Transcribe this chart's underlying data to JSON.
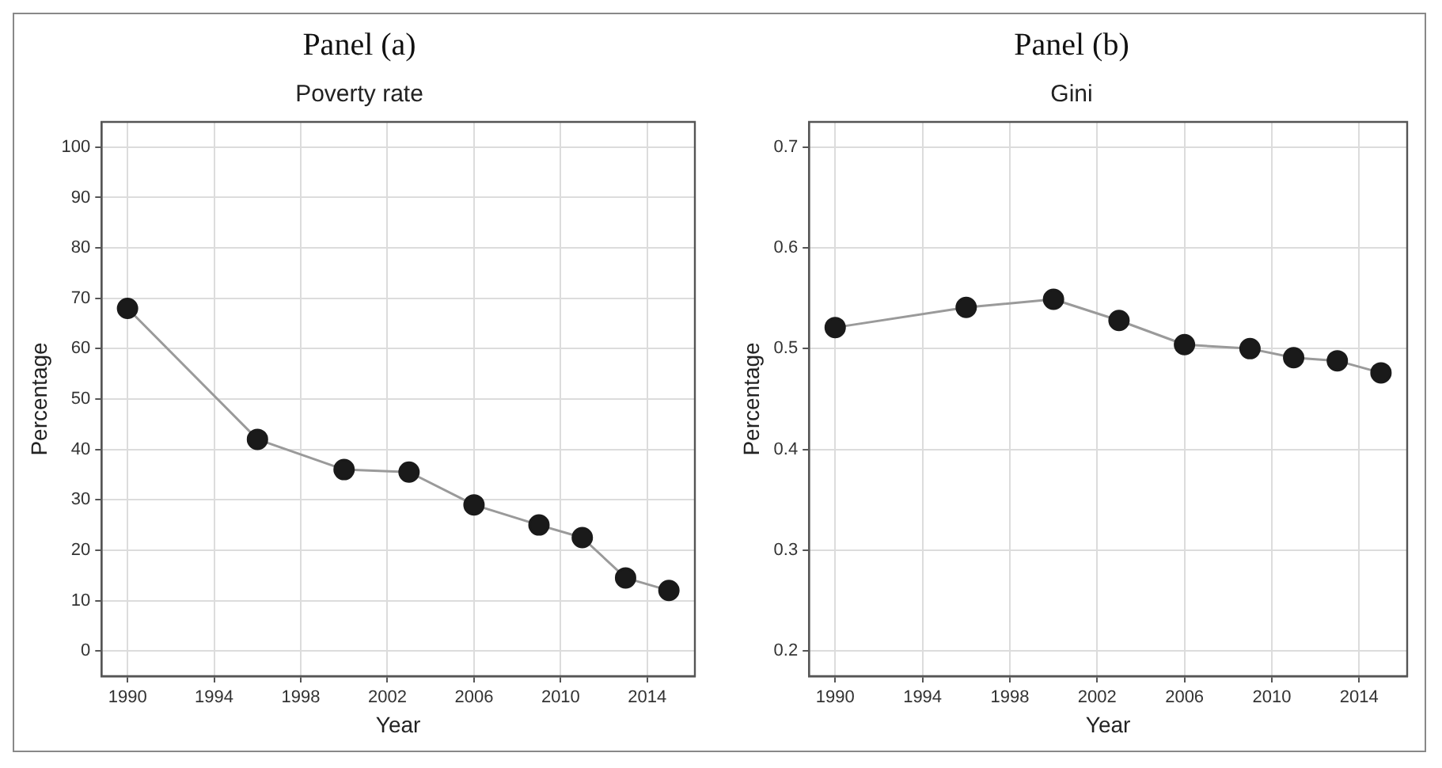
{
  "chart_data": [
    {
      "type": "line",
      "title": "Panel (a)",
      "subtitle": "Poverty rate",
      "xlabel": "Year",
      "ylabel": "Percentage",
      "x": [
        1990,
        1996,
        2000,
        2003,
        2006,
        2009,
        2011,
        2013,
        2015
      ],
      "series": [
        {
          "color": "#1a1a1a",
          "values": [
            68,
            42,
            36,
            35.5,
            29,
            25,
            22.5,
            14.5,
            12
          ]
        }
      ],
      "xlim": [
        1988.8,
        2016.2
      ],
      "xticks": [
        1990,
        1994,
        1998,
        2002,
        2006,
        2010,
        2014
      ],
      "ylim": [
        -5,
        105
      ],
      "yticks": [
        0,
        10,
        20,
        30,
        40,
        50,
        60,
        70,
        80,
        90,
        100
      ],
      "grid": true,
      "marker": "circle",
      "line_style": "solid",
      "legend": false
    },
    {
      "type": "line",
      "title": "Panel (b)",
      "subtitle": "Gini",
      "xlabel": "Year",
      "ylabel": "Percentage",
      "x": [
        1990,
        1996,
        2000,
        2003,
        2006,
        2009,
        2011,
        2013,
        2015
      ],
      "series": [
        {
          "color": "#1a1a1a",
          "values": [
            0.521,
            0.541,
            0.549,
            0.528,
            0.504,
            0.5,
            0.491,
            0.488,
            0.476
          ]
        }
      ],
      "xlim": [
        1988.8,
        2016.2
      ],
      "xticks": [
        1990,
        1994,
        1998,
        2002,
        2006,
        2010,
        2014
      ],
      "ylim": [
        0.175,
        0.725
      ],
      "yticks": [
        0.2,
        0.3,
        0.4,
        0.5,
        0.6,
        0.7
      ],
      "grid": true,
      "marker": "circle",
      "line_style": "solid",
      "legend": false
    }
  ]
}
